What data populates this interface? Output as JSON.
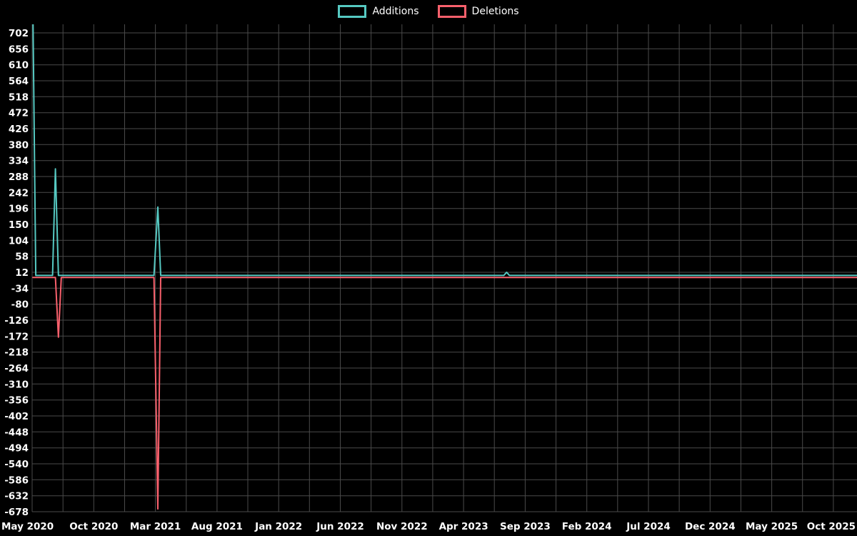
{
  "page": {
    "background": "#000000",
    "text_color": "#ffffff"
  },
  "legend": {
    "items": [
      {
        "label": "Additions",
        "color": "#56c9c2"
      },
      {
        "label": "Deletions",
        "color": "#f8606c"
      }
    ]
  },
  "chart_data": {
    "type": "line",
    "title": "",
    "legend_position": "top-center",
    "grid": true,
    "background": "#000000",
    "grid_color": "#4a4a4a",
    "text_color": "#ffffff",
    "x_axis": {
      "epoch": "2020-05-01",
      "months_per_tick": 5,
      "tick_labels": [
        "May 2020",
        "Oct 2020",
        "Mar 2021",
        "Aug 2021",
        "Jan 2022",
        "Jun 2022",
        "Nov 2022",
        "Apr 2023",
        "Sep 2023",
        "Feb 2024",
        "Jul 2024",
        "Dec 2024",
        "May 2025",
        "Oct 2025"
      ]
    },
    "y_axis": {
      "tick_step": 46,
      "ticks": [
        702,
        656,
        610,
        564,
        518,
        472,
        426,
        380,
        334,
        288,
        242,
        196,
        150,
        104,
        58,
        12,
        -34,
        -80,
        -126,
        -172,
        -218,
        -264,
        -310,
        -356,
        -402,
        -448,
        -494,
        -540,
        -586,
        -632,
        -678
      ]
    },
    "series": [
      {
        "name": "Additions",
        "color": "#56c9c2",
        "points": [
          [
            "2020-05-03",
            760
          ],
          [
            "2020-05-10",
            3
          ],
          [
            "2020-06-21",
            3
          ],
          [
            "2020-06-28",
            310
          ],
          [
            "2020-07-05",
            3
          ],
          [
            "2021-02-28",
            3
          ],
          [
            "2021-03-07",
            200
          ],
          [
            "2021-03-14",
            3
          ],
          [
            "2023-07-09",
            3
          ],
          [
            "2023-07-16",
            12
          ],
          [
            "2023-07-23",
            3
          ],
          [
            "2025-11-01",
            3
          ]
        ]
      },
      {
        "name": "Deletions",
        "color": "#f8606c",
        "points": [
          [
            "2020-05-03",
            -3
          ],
          [
            "2020-06-28",
            -3
          ],
          [
            "2020-07-05",
            -175
          ],
          [
            "2020-07-12",
            -3
          ],
          [
            "2021-02-28",
            -3
          ],
          [
            "2021-03-07",
            -670
          ],
          [
            "2021-03-14",
            -3
          ],
          [
            "2025-11-01",
            -3
          ]
        ]
      }
    ]
  }
}
